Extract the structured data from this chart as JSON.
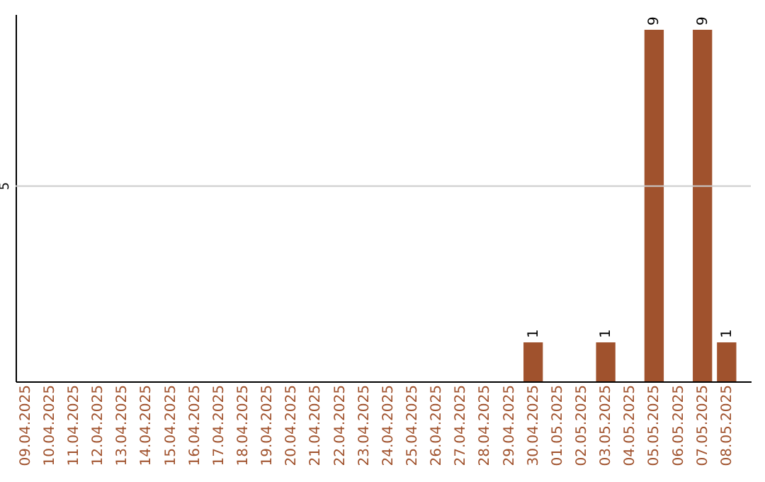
{
  "chart_data": {
    "type": "bar",
    "categories": [
      "09.04.2025",
      "10.04.2025",
      "11.04.2025",
      "12.04.2025",
      "13.04.2025",
      "14.04.2025",
      "15.04.2025",
      "16.04.2025",
      "17.04.2025",
      "18.04.2025",
      "19.04.2025",
      "20.04.2025",
      "21.04.2025",
      "22.04.2025",
      "23.04.2025",
      "24.04.2025",
      "25.04.2025",
      "26.04.2025",
      "27.04.2025",
      "28.04.2025",
      "29.04.2025",
      "30.04.2025",
      "01.05.2025",
      "02.05.2025",
      "03.05.2025",
      "04.05.2025",
      "05.05.2025",
      "06.05.2025",
      "07.05.2025",
      "08.05.2025"
    ],
    "values": [
      null,
      null,
      null,
      null,
      null,
      null,
      null,
      null,
      null,
      null,
      null,
      null,
      null,
      null,
      null,
      null,
      null,
      null,
      null,
      null,
      null,
      1,
      null,
      null,
      1,
      null,
      9,
      null,
      9,
      1
    ],
    "data_labels": true,
    "color": "#a0522d",
    "ylim": [
      0,
      9.4
    ],
    "ref_lines": [
      {
        "axis": "y",
        "value": 5,
        "label": "5",
        "color": "#cccccc"
      }
    ]
  }
}
